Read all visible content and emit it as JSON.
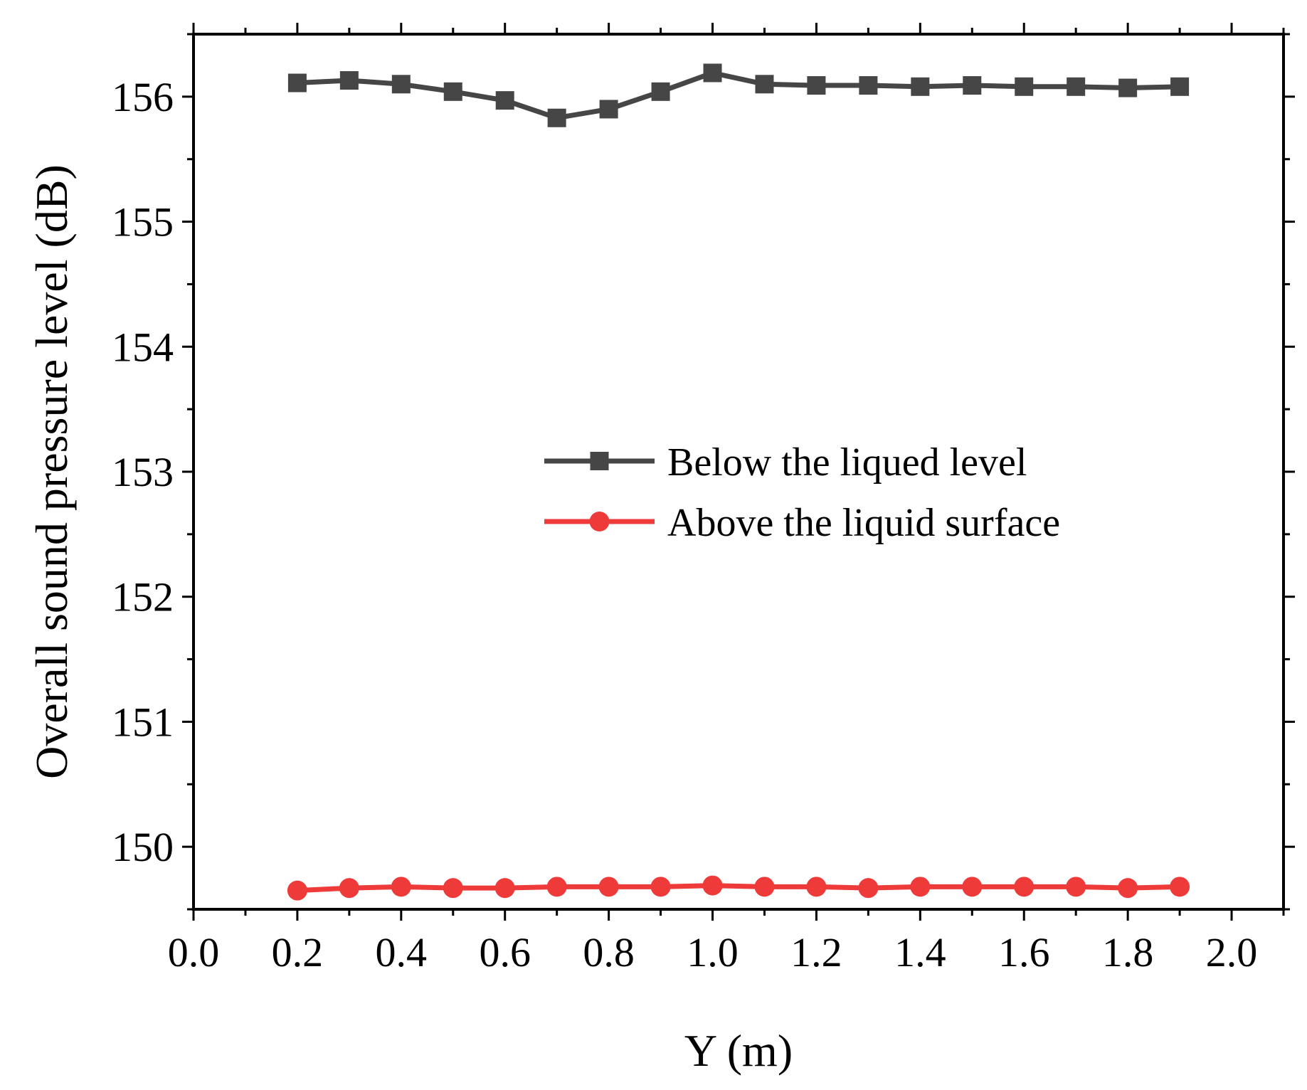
{
  "chart_data": {
    "type": "line",
    "title": "",
    "xlabel": "Y (m)",
    "ylabel": "Overall sound pressure level (dB)",
    "xlim": [
      0.0,
      2.1
    ],
    "ylim": [
      149.5,
      156.5
    ],
    "xticks": [
      0.0,
      0.2,
      0.4,
      0.6,
      0.8,
      1.0,
      1.2,
      1.4,
      1.6,
      1.8,
      2.0
    ],
    "xtick_labels": [
      "0.0",
      "0.2",
      "0.4",
      "0.6",
      "0.8",
      "1.0",
      "1.2",
      "1.4",
      "1.6",
      "1.8",
      "2.0"
    ],
    "yticks": [
      150,
      151,
      152,
      153,
      154,
      155,
      156
    ],
    "ytick_labels": [
      "150",
      "151",
      "152",
      "153",
      "154",
      "155",
      "156"
    ],
    "grid": false,
    "legend_position": "center-right",
    "x": [
      0.2,
      0.3,
      0.4,
      0.5,
      0.6,
      0.7,
      0.8,
      0.9,
      1.0,
      1.1,
      1.2,
      1.3,
      1.4,
      1.5,
      1.6,
      1.7,
      1.8,
      1.9
    ],
    "series": [
      {
        "name": "Below the liqued level",
        "color": "#464646",
        "marker": "square",
        "values": [
          156.11,
          156.13,
          156.1,
          156.04,
          155.97,
          155.83,
          155.9,
          156.04,
          156.19,
          156.1,
          156.09,
          156.09,
          156.08,
          156.09,
          156.08,
          156.08,
          156.07,
          156.08
        ]
      },
      {
        "name": "Above the liquid surface",
        "color": "#ef3a3a",
        "marker": "circle",
        "values": [
          149.65,
          149.67,
          149.68,
          149.67,
          149.67,
          149.68,
          149.68,
          149.68,
          149.69,
          149.68,
          149.68,
          149.67,
          149.68,
          149.68,
          149.68,
          149.68,
          149.67,
          149.68
        ]
      }
    ]
  }
}
